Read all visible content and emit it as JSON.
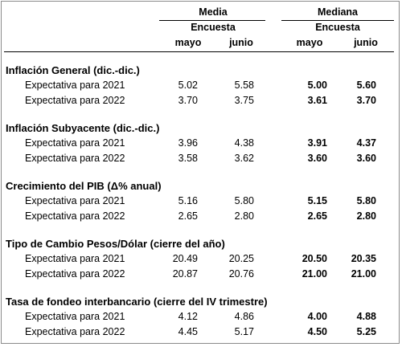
{
  "header": {
    "media": "Media",
    "mediana": "Mediana",
    "encuesta_media": "Encuesta",
    "encuesta_mediana": "Encuesta",
    "months": [
      "mayo",
      "junio",
      "mayo",
      "junio"
    ]
  },
  "sections": [
    {
      "title": "Inflación General (dic.-dic.)",
      "rows": [
        {
          "label": "Expectativa para 2021",
          "media_mayo": "5.02",
          "media_junio": "5.58",
          "mediana_mayo": "5.00",
          "mediana_junio": "5.60"
        },
        {
          "label": "Expectativa para 2022",
          "media_mayo": "3.70",
          "media_junio": "3.75",
          "mediana_mayo": "3.61",
          "mediana_junio": "3.70"
        }
      ]
    },
    {
      "title": "Inflación Subyacente (dic.-dic.)",
      "rows": [
        {
          "label": "Expectativa para 2021",
          "media_mayo": "3.96",
          "media_junio": "4.38",
          "mediana_mayo": "3.91",
          "mediana_junio": "4.37"
        },
        {
          "label": "Expectativa para 2022",
          "media_mayo": "3.58",
          "media_junio": "3.62",
          "mediana_mayo": "3.60",
          "mediana_junio": "3.60"
        }
      ]
    },
    {
      "title": "Crecimiento del PIB (Δ% anual)",
      "rows": [
        {
          "label": "Expectativa para 2021",
          "media_mayo": "5.16",
          "media_junio": "5.80",
          "mediana_mayo": "5.15",
          "mediana_junio": "5.80"
        },
        {
          "label": "Expectativa para 2022",
          "media_mayo": "2.65",
          "media_junio": "2.80",
          "mediana_mayo": "2.65",
          "mediana_junio": "2.80"
        }
      ]
    },
    {
      "title": "Tipo de Cambio Pesos/Dólar (cierre del año)",
      "rows": [
        {
          "label": "Expectativa para 2021",
          "media_mayo": "20.49",
          "media_junio": "20.25",
          "mediana_mayo": "20.50",
          "mediana_junio": "20.35"
        },
        {
          "label": "Expectativa para 2022",
          "media_mayo": "20.87",
          "media_junio": "20.76",
          "mediana_mayo": "21.00",
          "mediana_junio": "21.00"
        }
      ]
    },
    {
      "title": "Tasa de fondeo interbancario (cierre del IV trimestre)",
      "rows": [
        {
          "label": "Expectativa para 2021",
          "media_mayo": "4.12",
          "media_junio": "4.86",
          "mediana_mayo": "4.00",
          "mediana_junio": "4.88"
        },
        {
          "label": "Expectativa para 2022",
          "media_mayo": "4.45",
          "media_junio": "5.17",
          "mediana_mayo": "4.50",
          "mediana_junio": "5.25"
        }
      ]
    }
  ]
}
